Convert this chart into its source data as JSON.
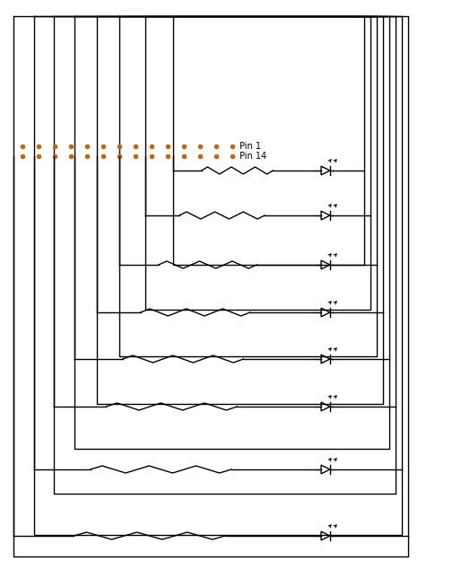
{
  "bg_color": "#ffffff",
  "line_color": "#000000",
  "dot_color": "#cc6600",
  "fig_width": 5.05,
  "fig_height": 6.54,
  "dpi": 100,
  "num_leds": 8,
  "pin_label_1": "Pin 1",
  "pin_label_14": "Pin 14"
}
